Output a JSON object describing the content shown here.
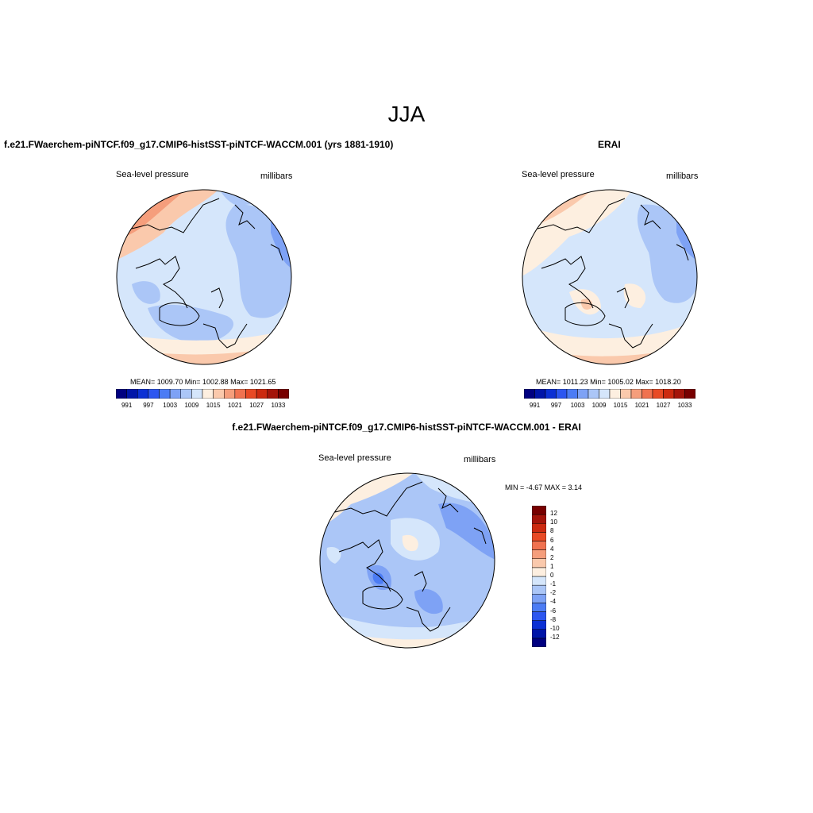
{
  "main_title": "JJA",
  "panels": {
    "model": {
      "title": "f.e21.FWaerchem-piNTCF.f09_g17.CMIP6-histSST-piNTCF-WACCM.001 (yrs 1881-1910)",
      "variable": "Sea-level pressure",
      "units": "millibars",
      "stats": "MEAN= 1009.70   Min= 1002.88   Max= 1021.65"
    },
    "obs": {
      "title": "ERAI",
      "variable": "Sea-level pressure",
      "units": "millibars",
      "stats": "MEAN= 1011.23   Min= 1005.02   Max= 1018.20"
    },
    "diff": {
      "title": "f.e21.FWaerchem-piNTCF.f09_g17.CMIP6-histSST-piNTCF-WACCM.001 - ERAI",
      "variable": "Sea-level pressure",
      "units": "millibars",
      "stats": "MIN =  -4.67 MAX =   3.14"
    }
  },
  "colorbar_abs": {
    "colors": [
      "#000080",
      "#0015a8",
      "#0b30d4",
      "#2c56f0",
      "#4c7cf4",
      "#7ea2f5",
      "#abc6f7",
      "#d5e6fb",
      "#fdefe0",
      "#fac9ac",
      "#f59e7c",
      "#f07250",
      "#e84a25",
      "#cc2a10",
      "#a4140a",
      "#780000"
    ],
    "labels": [
      "991",
      "997",
      "1003",
      "1009",
      "1015",
      "1021",
      "1027",
      "1033"
    ]
  },
  "colorbar_diff": {
    "colors": [
      "#000080",
      "#0015a8",
      "#0b30d4",
      "#2c56f0",
      "#4c7cf4",
      "#7ea2f5",
      "#abc6f7",
      "#d5e6fb",
      "#fdefe0",
      "#fac9ac",
      "#f59e7c",
      "#f07250",
      "#e84a25",
      "#cc2a10",
      "#a4140a",
      "#780000"
    ],
    "labels": [
      "12",
      "10",
      "8",
      "6",
      "4",
      "2",
      "1",
      "0",
      "-1",
      "-2",
      "-4",
      "-6",
      "-8",
      "-10",
      "-12"
    ]
  }
}
